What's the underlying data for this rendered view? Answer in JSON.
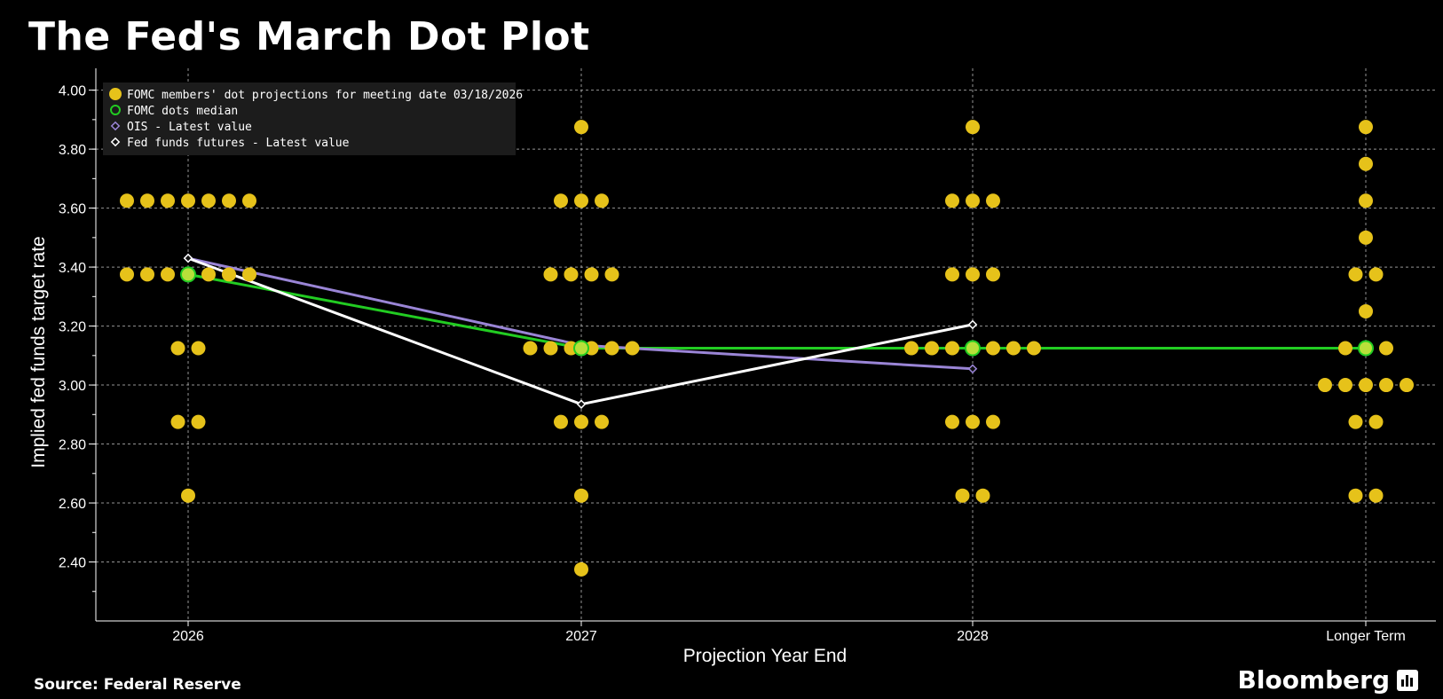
{
  "title": "The Fed's March Dot Plot",
  "source": "Source: Federal Reserve",
  "brand": "Bloomberg",
  "colors": {
    "background": "#000000",
    "dots": "#e6c21a",
    "median": "#22cc22",
    "ois": "#9a85d6",
    "futures": "#ffffff",
    "grid": "#bbbbbb"
  },
  "chart_data": {
    "type": "scatter",
    "xlabel": "Projection Year End",
    "ylabel": "Implied fed funds target rate",
    "ylim": [
      2.2,
      4.05
    ],
    "yticks": [
      "2.40",
      "2.60",
      "2.80",
      "3.00",
      "3.20",
      "3.40",
      "3.60",
      "3.80",
      "4.00"
    ],
    "categories": [
      "2026",
      "2027",
      "2028",
      "Longer Term"
    ],
    "legend": [
      {
        "key": "dots",
        "label": "FOMC members' dot projections for meeting date 03/18/2026"
      },
      {
        "key": "median",
        "label": "FOMC dots median"
      },
      {
        "key": "ois",
        "label": "OIS - Latest value"
      },
      {
        "key": "futures",
        "label": "Fed funds futures - Latest value"
      }
    ],
    "dots": [
      {
        "category": "2026",
        "rates": [
          {
            "rate": 3.625,
            "count": 7
          },
          {
            "rate": 3.375,
            "count": 7
          },
          {
            "rate": 3.125,
            "count": 2
          },
          {
            "rate": 2.875,
            "count": 2
          },
          {
            "rate": 2.625,
            "count": 1
          }
        ]
      },
      {
        "category": "2027",
        "rates": [
          {
            "rate": 3.875,
            "count": 1
          },
          {
            "rate": 3.625,
            "count": 3
          },
          {
            "rate": 3.375,
            "count": 4
          },
          {
            "rate": 3.125,
            "count": 6
          },
          {
            "rate": 2.875,
            "count": 3
          },
          {
            "rate": 2.625,
            "count": 1
          },
          {
            "rate": 2.375,
            "count": 1
          }
        ]
      },
      {
        "category": "2028",
        "rates": [
          {
            "rate": 3.875,
            "count": 1
          },
          {
            "rate": 3.625,
            "count": 3
          },
          {
            "rate": 3.375,
            "count": 3
          },
          {
            "rate": 3.125,
            "count": 7
          },
          {
            "rate": 2.875,
            "count": 3
          },
          {
            "rate": 2.625,
            "count": 2
          }
        ]
      },
      {
        "category": "Longer Term",
        "rates": [
          {
            "rate": 3.875,
            "count": 1
          },
          {
            "rate": 3.75,
            "count": 1
          },
          {
            "rate": 3.625,
            "count": 1
          },
          {
            "rate": 3.5,
            "count": 1
          },
          {
            "rate": 3.375,
            "count": 2
          },
          {
            "rate": 3.25,
            "count": 1
          },
          {
            "rate": 3.125,
            "count": 3
          },
          {
            "rate": 3.0,
            "count": 5
          },
          {
            "rate": 2.875,
            "count": 2
          },
          {
            "rate": 2.625,
            "count": 2
          }
        ]
      }
    ],
    "series": [
      {
        "name": "FOMC dots median",
        "key": "median",
        "x": [
          "2026",
          "2027",
          "2028",
          "Longer Term"
        ],
        "values": [
          3.375,
          3.125,
          3.125,
          3.125
        ]
      },
      {
        "name": "OIS - Latest value",
        "key": "ois",
        "x": [
          "2026",
          "2027",
          "2028"
        ],
        "values": [
          3.43,
          3.135,
          3.055
        ]
      },
      {
        "name": "Fed funds futures - Latest value",
        "key": "futures",
        "x": [
          "2026",
          "2027",
          "2028"
        ],
        "values": [
          3.43,
          2.935,
          3.205
        ]
      }
    ]
  }
}
